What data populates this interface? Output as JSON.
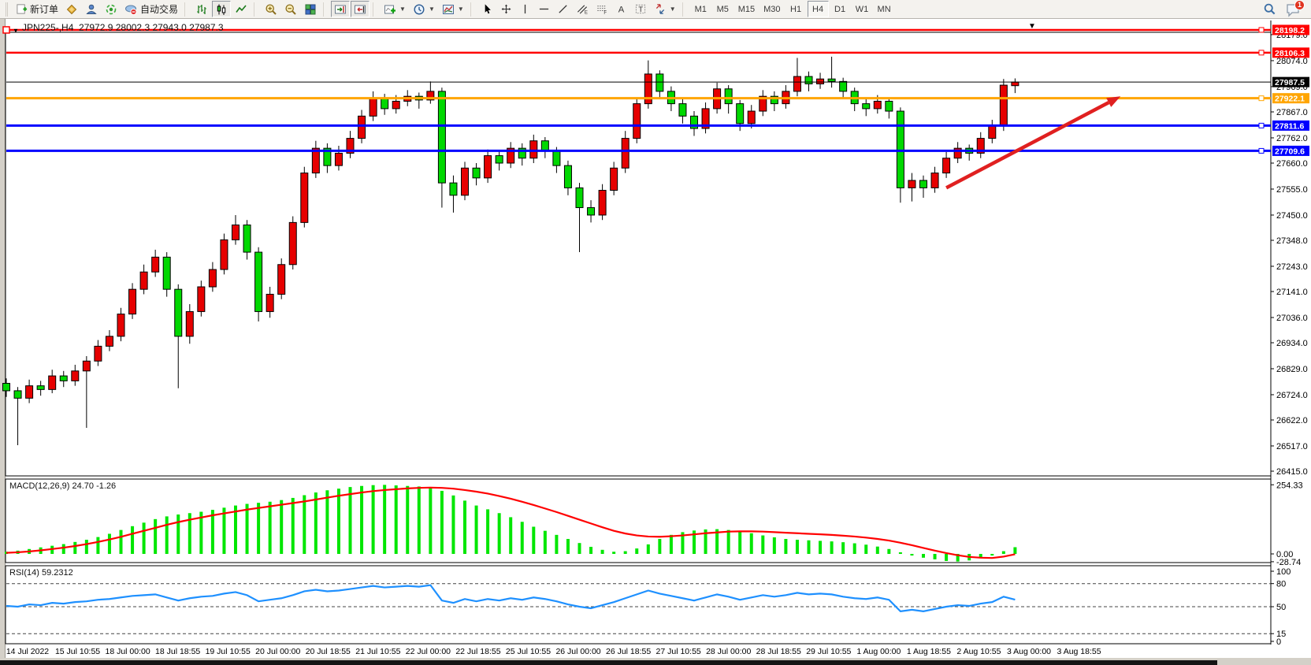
{
  "toolbar": {
    "new_order_label": "新订单",
    "auto_trading_label": "自动交易",
    "timeframes": [
      {
        "label": "M1",
        "active": false
      },
      {
        "label": "M5",
        "active": false
      },
      {
        "label": "M15",
        "active": false
      },
      {
        "label": "M30",
        "active": false
      },
      {
        "label": "H1",
        "active": false
      },
      {
        "label": "H4",
        "active": true
      },
      {
        "label": "D1",
        "active": false
      },
      {
        "label": "W1",
        "active": false
      },
      {
        "label": "MN",
        "active": false
      }
    ],
    "notification_count": "1"
  },
  "chart_data": {
    "type": "candlestick",
    "symbol": "JPN225-",
    "timeframe": "H4",
    "title": "JPN225-,H4  27972.9 28002.3 27943.0 27987.3",
    "current_bar": {
      "open": 27972.9,
      "high": 28002.3,
      "low": 27943.0,
      "close": 27987.3
    },
    "current_price": 27987.5,
    "up_color": "#e60000",
    "down_color": "#00d800",
    "price_axis": {
      "min": 26415.0,
      "max": 28179.0,
      "ticks": [
        28179.0,
        28074.0,
        27969.0,
        27867.0,
        27762.0,
        27660.0,
        27555.0,
        27450.0,
        27348.0,
        27243.0,
        27141.0,
        27036.0,
        26934.0,
        26829.0,
        26724.0,
        26622.0,
        26517.0,
        26415.0
      ]
    },
    "hlines": [
      {
        "price": 28198.2,
        "label": "28198.2",
        "color": "#ff0000",
        "width": 2.5,
        "kind": "resistance"
      },
      {
        "price": 28106.3,
        "label": "28106.3",
        "color": "#ff0000",
        "width": 2.5,
        "kind": "resistance"
      },
      {
        "price": 27987.5,
        "label": "27987.5",
        "color": "#000000",
        "width": 1,
        "kind": "current"
      },
      {
        "price": 27922.1,
        "label": "27922.1",
        "color": "#ffa500",
        "width": 3,
        "kind": "pivot"
      },
      {
        "price": 27811.6,
        "label": "27811.6",
        "color": "#0000ff",
        "width": 3,
        "kind": "support"
      },
      {
        "price": 27709.6,
        "label": "27709.6",
        "color": "#0000ff",
        "width": 3,
        "kind": "support"
      }
    ],
    "trend_arrow": {
      "from_bar": 82,
      "from_price": 27560,
      "to_bar": 97.2,
      "to_price": 27930,
      "color": "#e02020"
    },
    "candles": [
      [
        26770,
        26790,
        26715,
        26740
      ],
      [
        26740,
        26755,
        26520,
        26710
      ],
      [
        26710,
        26785,
        26690,
        26760
      ],
      [
        26760,
        26780,
        26720,
        26745
      ],
      [
        26745,
        26825,
        26730,
        26800
      ],
      [
        26800,
        26820,
        26755,
        26780
      ],
      [
        26780,
        26845,
        26760,
        26820
      ],
      [
        26820,
        26880,
        26590,
        26860
      ],
      [
        26860,
        26945,
        26840,
        26920
      ],
      [
        26920,
        26985,
        26900,
        26960
      ],
      [
        26960,
        27075,
        26940,
        27050
      ],
      [
        27050,
        27175,
        27030,
        27150
      ],
      [
        27150,
        27250,
        27130,
        27220
      ],
      [
        27220,
        27310,
        27200,
        27280
      ],
      [
        27280,
        27300,
        27120,
        27150
      ],
      [
        27150,
        27170,
        26750,
        26960
      ],
      [
        26960,
        27090,
        26930,
        27060
      ],
      [
        27060,
        27185,
        27040,
        27160
      ],
      [
        27160,
        27260,
        27140,
        27230
      ],
      [
        27230,
        27375,
        27210,
        27350
      ],
      [
        27350,
        27450,
        27330,
        27410
      ],
      [
        27410,
        27430,
        27270,
        27300
      ],
      [
        27300,
        27320,
        27020,
        27060
      ],
      [
        27060,
        27160,
        27035,
        27130
      ],
      [
        27130,
        27275,
        27110,
        27250
      ],
      [
        27250,
        27445,
        27230,
        27420
      ],
      [
        27420,
        27645,
        27400,
        27620
      ],
      [
        27620,
        27750,
        27600,
        27720
      ],
      [
        27720,
        27740,
        27620,
        27650
      ],
      [
        27650,
        27730,
        27630,
        27700
      ],
      [
        27700,
        27790,
        27680,
        27760
      ],
      [
        27760,
        27875,
        27740,
        27850
      ],
      [
        27850,
        27950,
        27830,
        27920
      ],
      [
        27920,
        27940,
        27855,
        27880
      ],
      [
        27880,
        27935,
        27860,
        27910
      ],
      [
        27910,
        27955,
        27890,
        27930
      ],
      [
        27930,
        27945,
        27880,
        27915
      ],
      [
        27915,
        27990,
        27900,
        27950
      ],
      [
        27950,
        27965,
        27480,
        27580
      ],
      [
        27580,
        27610,
        27460,
        27530
      ],
      [
        27530,
        27665,
        27510,
        27640
      ],
      [
        27640,
        27660,
        27570,
        27600
      ],
      [
        27600,
        27715,
        27580,
        27690
      ],
      [
        27690,
        27710,
        27630,
        27660
      ],
      [
        27660,
        27745,
        27640,
        27720
      ],
      [
        27720,
        27740,
        27650,
        27680
      ],
      [
        27680,
        27775,
        27660,
        27750
      ],
      [
        27750,
        27765,
        27680,
        27710
      ],
      [
        27710,
        27725,
        27620,
        27650
      ],
      [
        27650,
        27670,
        27530,
        27560
      ],
      [
        27560,
        27580,
        27300,
        27480
      ],
      [
        27480,
        27510,
        27420,
        27450
      ],
      [
        27450,
        27575,
        27430,
        27550
      ],
      [
        27550,
        27665,
        27530,
        27640
      ],
      [
        27640,
        27790,
        27620,
        27760
      ],
      [
        27760,
        27925,
        27740,
        27900
      ],
      [
        27900,
        28075,
        27880,
        28020
      ],
      [
        28020,
        28035,
        27920,
        27950
      ],
      [
        27950,
        27970,
        27870,
        27900
      ],
      [
        27900,
        27920,
        27820,
        27850
      ],
      [
        27850,
        27870,
        27770,
        27800
      ],
      [
        27800,
        27905,
        27780,
        27880
      ],
      [
        27880,
        27985,
        27860,
        27960
      ],
      [
        27960,
        27975,
        27860,
        27900
      ],
      [
        27900,
        27915,
        27790,
        27820
      ],
      [
        27820,
        27895,
        27800,
        27870
      ],
      [
        27870,
        27955,
        27850,
        27930
      ],
      [
        27930,
        27950,
        27870,
        27900
      ],
      [
        27900,
        27975,
        27880,
        27950
      ],
      [
        27950,
        28085,
        27930,
        28010
      ],
      [
        28010,
        28030,
        27950,
        27980
      ],
      [
        27980,
        28025,
        27960,
        28000
      ],
      [
        28000,
        28090,
        27965,
        27990
      ],
      [
        27990,
        28005,
        27920,
        27950
      ],
      [
        27950,
        27965,
        27870,
        27900
      ],
      [
        27900,
        27920,
        27850,
        27880
      ],
      [
        27880,
        27935,
        27860,
        27910
      ],
      [
        27910,
        27920,
        27840,
        27870
      ],
      [
        27870,
        27885,
        27500,
        27560
      ],
      [
        27560,
        27620,
        27505,
        27590
      ],
      [
        27590,
        27610,
        27520,
        27560
      ],
      [
        27560,
        27645,
        27540,
        27620
      ],
      [
        27620,
        27705,
        27600,
        27680
      ],
      [
        27680,
        27745,
        27660,
        27720
      ],
      [
        27720,
        27735,
        27670,
        27700
      ],
      [
        27700,
        27785,
        27680,
        27760
      ],
      [
        27760,
        27835,
        27740,
        27810
      ],
      [
        27810,
        28000,
        27790,
        27975
      ],
      [
        27972.9,
        28002.3,
        27943.0,
        27987.3
      ]
    ],
    "macd": {
      "label": "MACD(12,26,9)",
      "value_text": "24.70 -1.26",
      "macd_value": 24.7,
      "signal_value": -1.26,
      "axis_ticks": [
        "254.33",
        "0.00",
        "-28.74"
      ],
      "range": {
        "max": 254.33,
        "min": -28.74
      },
      "hist_color": "#00e600",
      "signal_color": "#ff0000",
      "histogram": [
        8,
        12,
        18,
        24,
        30,
        36,
        44,
        52,
        62,
        74,
        88,
        102,
        115,
        128,
        138,
        145,
        150,
        155,
        162,
        170,
        178,
        184,
        188,
        192,
        198,
        206,
        216,
        226,
        234,
        240,
        246,
        250,
        253,
        254,
        252,
        250,
        248,
        245,
        232,
        215,
        196,
        178,
        164,
        150,
        135,
        118,
        100,
        85,
        70,
        55,
        40,
        26,
        15,
        8,
        10,
        20,
        35,
        55,
        70,
        80,
        86,
        90,
        91,
        88,
        83,
        76,
        68,
        61,
        55,
        52,
        50,
        48,
        46,
        43,
        39,
        34,
        27,
        18,
        6,
        -6,
        -14,
        -20,
        -26,
        -28,
        -24,
        -16,
        -6,
        10,
        24.7
      ],
      "signal": [
        4,
        6,
        9,
        13,
        18,
        23,
        29,
        36,
        44,
        53,
        63,
        74,
        85,
        96,
        107,
        117,
        126,
        134,
        142,
        149,
        156,
        163,
        169,
        175,
        181,
        187,
        193,
        200,
        207,
        214,
        220,
        226,
        231,
        235,
        238,
        241,
        243,
        244,
        243,
        240,
        235,
        229,
        222,
        213,
        203,
        192,
        180,
        167,
        154,
        140,
        126,
        112,
        98,
        85,
        75,
        68,
        64,
        63,
        65,
        68,
        72,
        76,
        79,
        82,
        83,
        83,
        82,
        80,
        78,
        76,
        74,
        72,
        70,
        67,
        64,
        60,
        55,
        49,
        41,
        32,
        22,
        12,
        3,
        -5,
        -11,
        -14,
        -15,
        -10,
        -1.3
      ]
    },
    "rsi": {
      "label": "RSI(14)",
      "value_text": "59.2312",
      "value": 59.2312,
      "axis_ticks": [
        "100",
        "80",
        "50",
        "15",
        "0"
      ],
      "levels": [
        80,
        50,
        15
      ],
      "color": "#1e90ff",
      "series": [
        51,
        50,
        53,
        52,
        55,
        54,
        56,
        57,
        59,
        60,
        62,
        64,
        65,
        66,
        62,
        58,
        61,
        63,
        64,
        67,
        69,
        65,
        57,
        59,
        61,
        65,
        70,
        72,
        70,
        71,
        73,
        75,
        77,
        75,
        76,
        77,
        76,
        78,
        58,
        55,
        60,
        57,
        60,
        58,
        61,
        59,
        62,
        60,
        57,
        53,
        50,
        48,
        52,
        56,
        61,
        66,
        71,
        67,
        64,
        61,
        58,
        62,
        66,
        63,
        59,
        62,
        65,
        63,
        65,
        68,
        66,
        67,
        66,
        63,
        61,
        60,
        62,
        59,
        44,
        46,
        44,
        47,
        50,
        52,
        51,
        54,
        56,
        63,
        59.2
      ]
    },
    "time_axis": [
      "14 Jul 2022",
      "15 Jul 10:55",
      "18 Jul 00:00",
      "18 Jul 18:55",
      "19 Jul 10:55",
      "20 Jul 00:00",
      "20 Jul 18:55",
      "21 Jul 10:55",
      "22 Jul 00:00",
      "22 Jul 18:55",
      "25 Jul 10:55",
      "26 Jul 00:00",
      "26 Jul 18:55",
      "27 Jul 10:55",
      "28 Jul 00:00",
      "28 Jul 18:55",
      "29 Jul 10:55",
      "1 Aug 00:00",
      "1 Aug 18:55",
      "2 Aug 10:55",
      "3 Aug 00:00",
      "3 Aug 18:55"
    ]
  }
}
